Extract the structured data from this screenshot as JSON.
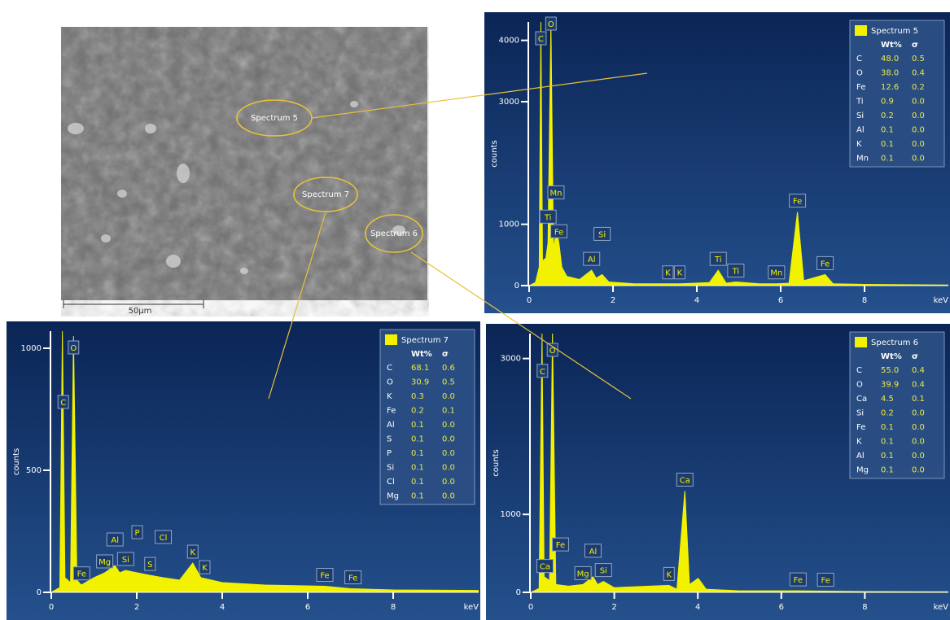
{
  "image": {
    "labels": [
      "Spectrum 5",
      "Spectrum 7",
      "Spectrum 6"
    ],
    "scale_bar": "50µm"
  },
  "chart_data": [
    {
      "type": "area",
      "title": "Spectrum 5",
      "xlabel": "keV",
      "ylabel": "counts",
      "color": "#f2f200",
      "x": [
        0,
        0.15,
        0.24,
        0.28,
        0.32,
        0.4,
        0.45,
        0.52,
        0.58,
        0.65,
        0.71,
        0.78,
        0.9,
        1.2,
        1.49,
        1.6,
        1.74,
        1.9,
        2.5,
        3.3,
        3.6,
        4.3,
        4.51,
        4.7,
        4.93,
        5.5,
        5.9,
        6.2,
        6.4,
        6.55,
        7.06,
        7.25,
        8,
        10
      ],
      "values": [
        0,
        50,
        300,
        4300,
        400,
        450,
        700,
        4300,
        600,
        900,
        700,
        300,
        150,
        100,
        250,
        120,
        180,
        60,
        30,
        30,
        30,
        50,
        250,
        40,
        60,
        30,
        30,
        40,
        1200,
        80,
        180,
        30,
        20,
        10
      ],
      "xlim": [
        0,
        10
      ],
      "ylim": [
        0,
        4300
      ],
      "xticks": [
        0,
        2,
        4,
        6,
        8
      ],
      "yticks": [
        0,
        1000,
        3000,
        4000
      ],
      "annotations": [
        {
          "text": "C",
          "x": 0.28
        },
        {
          "text": "O",
          "x": 0.52
        },
        {
          "text": "Fe",
          "x": 0.71
        },
        {
          "text": "Ti",
          "x": 0.45
        },
        {
          "text": "Mn",
          "x": 0.64
        },
        {
          "text": "Al",
          "x": 1.49
        },
        {
          "text": "Si",
          "x": 1.74
        },
        {
          "text": "K",
          "x": 3.31
        },
        {
          "text": "K",
          "x": 3.59
        },
        {
          "text": "Ti",
          "x": 4.51
        },
        {
          "text": "Ti",
          "x": 4.93
        },
        {
          "text": "Mn",
          "x": 5.9
        },
        {
          "text": "Fe",
          "x": 6.4
        },
        {
          "text": "Fe",
          "x": 7.06
        }
      ],
      "table": {
        "header": [
          "Wt%",
          "σ"
        ],
        "rows": [
          [
            "C",
            "48.0",
            "0.5"
          ],
          [
            "O",
            "38.0",
            "0.4"
          ],
          [
            "Fe",
            "12.6",
            "0.2"
          ],
          [
            "Ti",
            "0.9",
            "0.0"
          ],
          [
            "Si",
            "0.2",
            "0.0"
          ],
          [
            "Al",
            "0.1",
            "0.0"
          ],
          [
            "K",
            "0.1",
            "0.0"
          ],
          [
            "Mn",
            "0.1",
            "0.0"
          ]
        ]
      }
    },
    {
      "type": "area",
      "title": "Spectrum 7",
      "xlabel": "keV",
      "ylabel": "counts",
      "color": "#f2f200",
      "x": [
        0,
        0.2,
        0.26,
        0.32,
        0.45,
        0.52,
        0.6,
        0.7,
        1,
        1.25,
        1.49,
        1.6,
        1.74,
        2.01,
        2.3,
        2.62,
        3,
        3.31,
        3.5,
        4,
        5,
        6.4,
        7,
        8,
        10
      ],
      "values": [
        0,
        20,
        1070,
        60,
        40,
        1050,
        50,
        30,
        60,
        80,
        110,
        80,
        90,
        80,
        70,
        60,
        50,
        120,
        60,
        40,
        30,
        25,
        15,
        10,
        8
      ],
      "xlim": [
        0,
        10
      ],
      "ylim": [
        0,
        1070
      ],
      "xticks": [
        0,
        2,
        4,
        6,
        8
      ],
      "yticks": [
        0,
        500,
        1000
      ],
      "annotations": [
        {
          "text": "C",
          "x": 0.28
        },
        {
          "text": "O",
          "x": 0.52
        },
        {
          "text": "Fe",
          "x": 0.71
        },
        {
          "text": "Mg",
          "x": 1.25
        },
        {
          "text": "Al",
          "x": 1.49
        },
        {
          "text": "Si",
          "x": 1.74
        },
        {
          "text": "P",
          "x": 2.01
        },
        {
          "text": "S",
          "x": 2.31
        },
        {
          "text": "Cl",
          "x": 2.62
        },
        {
          "text": "K",
          "x": 3.31
        },
        {
          "text": "K",
          "x": 3.59
        },
        {
          "text": "Fe",
          "x": 6.4
        },
        {
          "text": "Fe",
          "x": 7.06
        }
      ],
      "table": {
        "header": [
          "Wt%",
          "σ"
        ],
        "rows": [
          [
            "C",
            "68.1",
            "0.6"
          ],
          [
            "O",
            "30.9",
            "0.5"
          ],
          [
            "K",
            "0.3",
            "0.0"
          ],
          [
            "Fe",
            "0.2",
            "0.1"
          ],
          [
            "Al",
            "0.1",
            "0.0"
          ],
          [
            "S",
            "0.1",
            "0.0"
          ],
          [
            "P",
            "0.1",
            "0.0"
          ],
          [
            "Si",
            "0.1",
            "0.0"
          ],
          [
            "Cl",
            "0.1",
            "0.0"
          ],
          [
            "Mg",
            "0.1",
            "0.0"
          ]
        ]
      }
    },
    {
      "type": "area",
      "title": "Spectrum 6",
      "xlabel": "keV",
      "ylabel": "counts",
      "color": "#f2f200",
      "x": [
        0,
        0.2,
        0.27,
        0.32,
        0.45,
        0.52,
        0.6,
        0.9,
        1.25,
        1.49,
        1.6,
        1.74,
        2,
        3.31,
        3.5,
        3.69,
        3.8,
        4.01,
        4.2,
        5,
        6.4,
        8,
        10
      ],
      "values": [
        0,
        50,
        3320,
        200,
        150,
        3320,
        100,
        80,
        100,
        200,
        100,
        140,
        60,
        90,
        40,
        1300,
        100,
        180,
        40,
        20,
        20,
        10,
        8
      ],
      "xlim": [
        0,
        10
      ],
      "ylim": [
        0,
        3320
      ],
      "xticks": [
        0,
        2,
        4,
        6,
        8
      ],
      "yticks": [
        0,
        1000,
        3000
      ],
      "annotations": [
        {
          "text": "C",
          "x": 0.28
        },
        {
          "text": "O",
          "x": 0.52
        },
        {
          "text": "Ca",
          "x": 0.34
        },
        {
          "text": "Fe",
          "x": 0.71
        },
        {
          "text": "Mg",
          "x": 1.25
        },
        {
          "text": "Al",
          "x": 1.49
        },
        {
          "text": "Si",
          "x": 1.74
        },
        {
          "text": "K",
          "x": 3.31
        },
        {
          "text": "Ca",
          "x": 3.69
        },
        {
          "text": "Fe",
          "x": 6.4
        },
        {
          "text": "Fe",
          "x": 7.06
        }
      ],
      "table": {
        "header": [
          "Wt%",
          "σ"
        ],
        "rows": [
          [
            "C",
            "55.0",
            "0.4"
          ],
          [
            "O",
            "39.9",
            "0.4"
          ],
          [
            "Ca",
            "4.5",
            "0.1"
          ],
          [
            "Si",
            "0.2",
            "0.0"
          ],
          [
            "Fe",
            "0.1",
            "0.0"
          ],
          [
            "K",
            "0.1",
            "0.0"
          ],
          [
            "Al",
            "0.1",
            "0.0"
          ],
          [
            "Mg",
            "0.1",
            "0.0"
          ]
        ]
      }
    }
  ]
}
